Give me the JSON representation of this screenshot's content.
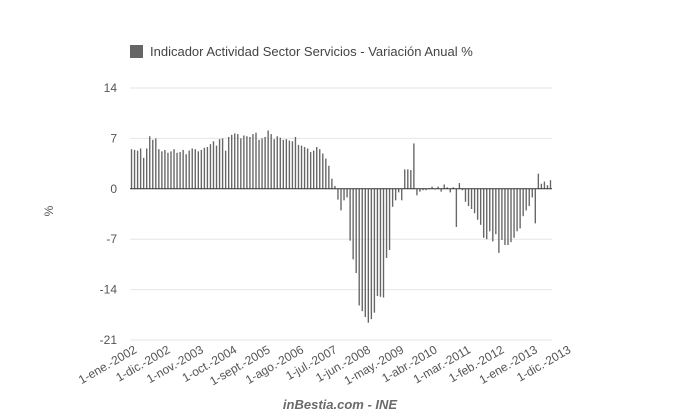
{
  "chart_data": {
    "type": "bar",
    "series": [
      {
        "name": "Indicador Actividad Sector Servicios - Variación Anual %",
        "color": "#666666",
        "values": [
          5.5,
          5.4,
          5.3,
          5.6,
          4.3,
          5.6,
          7.3,
          6.8,
          7.0,
          5.5,
          5.2,
          5.4,
          5.0,
          5.2,
          5.5,
          5.0,
          5.1,
          5.4,
          4.8,
          5.3,
          5.6,
          5.5,
          5.2,
          5.4,
          5.7,
          5.8,
          6.2,
          6.6,
          6.0,
          6.9,
          7.0,
          5.3,
          7.2,
          7.5,
          7.7,
          7.6,
          7.0,
          7.4,
          7.3,
          7.2,
          7.6,
          7.8,
          6.8,
          7.0,
          7.2,
          8.1,
          7.6,
          6.9,
          7.3,
          7.1,
          6.8,
          6.9,
          6.7,
          6.6,
          7.2,
          6.1,
          6.0,
          5.8,
          5.6,
          5.1,
          5.3,
          5.8,
          5.5,
          4.9,
          4.2,
          3.2,
          1.4,
          0.4,
          -1.5,
          -3.0,
          -1.6,
          -1.2,
          -7.2,
          -9.8,
          -11.7,
          -16.2,
          -17.0,
          -17.8,
          -18.6,
          -18.1,
          -17.2,
          -14.9,
          -15.0,
          -15.1,
          -9.6,
          -8.5,
          -2.5,
          -1.6,
          -0.5,
          -1.6,
          2.7,
          2.7,
          2.6,
          6.3,
          -0.9,
          -0.4,
          -0.2,
          -0.2,
          0.1,
          0.3,
          -0.1,
          0.3,
          -0.4,
          0.6,
          0.2,
          -0.5,
          0.2,
          -5.3,
          0.8,
          -0.2,
          -1.8,
          -2.4,
          -2.8,
          -3.4,
          -4.3,
          -5.0,
          -6.8,
          -7.0,
          -5.9,
          -7.3,
          -6.3,
          -8.9,
          -7.1,
          -7.8,
          -7.8,
          -7.4,
          -6.8,
          -5.9,
          -5.5,
          -3.8,
          -3.0,
          -2.4,
          -1.2,
          -4.8,
          2.1,
          0.7,
          1.0,
          0.5,
          1.2
        ]
      }
    ],
    "x_tick_labels": [
      "1-ene.-2002",
      "1-dic.-2002",
      "1-nov.-2003",
      "1-oct.-2004",
      "1-sept.-2005",
      "1-ago.-2006",
      "1-jul.-2007",
      "1-jun.-2008",
      "1-may.-2009",
      "1-abr.-2010",
      "1-mar.-2011",
      "1-feb.-2012",
      "1-ene.-2013",
      "1-dic.-2013"
    ],
    "x_tick_every": 11,
    "ylim": [
      -21,
      14
    ],
    "y_ticks": [
      14,
      7,
      0,
      -7,
      -14,
      -21
    ],
    "ylabel": "%",
    "xlabel": "",
    "legend": {
      "position": "top-left",
      "label": "Indicador Actividad Sector Servicios - Variación Anual %"
    },
    "grid": true,
    "source": "inBestia.com - INE"
  }
}
